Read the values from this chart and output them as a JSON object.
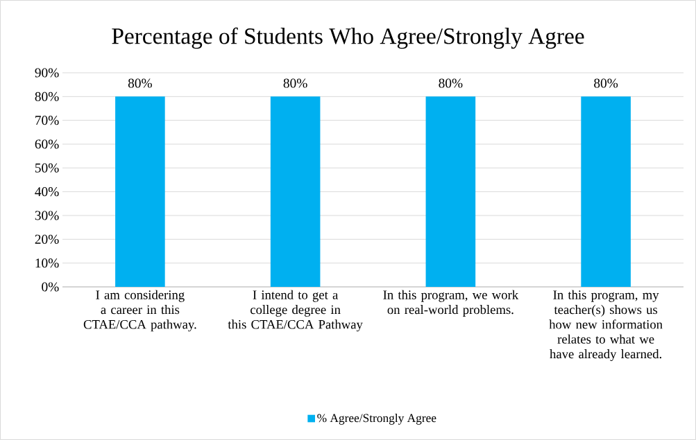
{
  "chart_data": {
    "type": "bar",
    "title": "Percentage of Students Who Agree/Strongly Agree",
    "categories": [
      "I am considering a career in this CTAE/CCA pathway.",
      "I intend to get a college degree in this CTAE/CCA Pathway",
      "In this program, we work on real-world problems.",
      "In this program, my teacher(s) shows us how new information relates to what we have already learned."
    ],
    "series": [
      {
        "name": "% Agree/Strongly Agree",
        "color": "#00b0f0",
        "values": [
          80,
          80,
          80,
          80
        ],
        "value_labels": [
          "80%",
          "80%",
          "80%",
          "80%"
        ]
      }
    ],
    "ylim": [
      0,
      90
    ],
    "yticks": [
      {
        "value": 0,
        "label": "0%"
      },
      {
        "value": 10,
        "label": "10%"
      },
      {
        "value": 20,
        "label": "20%"
      },
      {
        "value": 30,
        "label": "30%"
      },
      {
        "value": 40,
        "label": "40%"
      },
      {
        "value": 50,
        "label": "50%"
      },
      {
        "value": 60,
        "label": "60%"
      },
      {
        "value": 70,
        "label": "70%"
      },
      {
        "value": 80,
        "label": "80%"
      },
      {
        "value": 90,
        "label": "90%"
      }
    ],
    "grid": "y",
    "legend": "bottom"
  }
}
